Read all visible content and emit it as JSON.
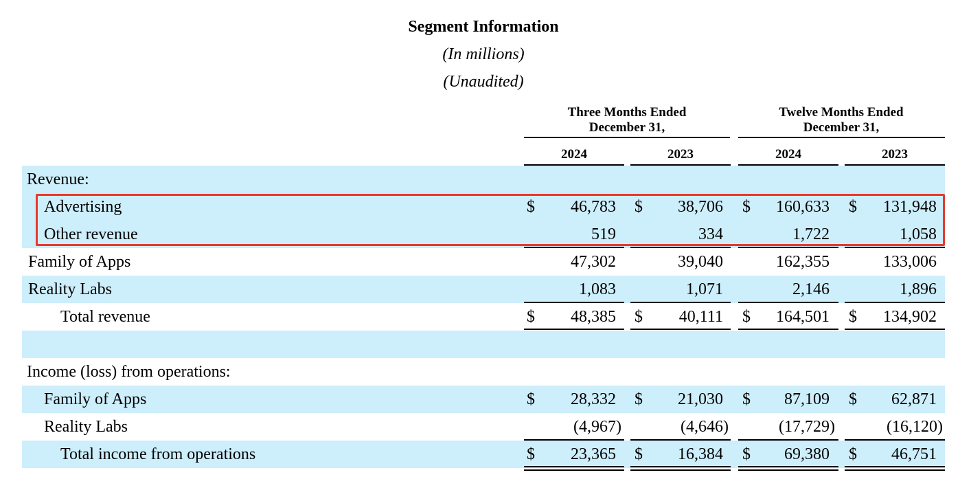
{
  "title": "Segment Information",
  "subtitle1": "(In millions)",
  "subtitle2": "(Unaudited)",
  "periods": [
    {
      "line1": "Three Months Ended",
      "line2": "December 31,"
    },
    {
      "line1": "Twelve Months Ended",
      "line2": "December 31,"
    }
  ],
  "years": [
    "2024",
    "2023",
    "2024",
    "2023"
  ],
  "rows": [
    {
      "label": "Revenue:",
      "values": [
        "",
        "",
        "",
        ""
      ]
    },
    {
      "label": "Advertising",
      "values": [
        "46,783",
        "38,706",
        "160,633",
        "131,948"
      ],
      "dollar": "$"
    },
    {
      "label": "Other revenue",
      "values": [
        "519",
        "334",
        "1,722",
        "1,058"
      ]
    },
    {
      "label": "Family of Apps",
      "values": [
        "47,302",
        "39,040",
        "162,355",
        "133,006"
      ]
    },
    {
      "label": "Reality Labs",
      "values": [
        "1,083",
        "1,071",
        "2,146",
        "1,896"
      ]
    },
    {
      "label": "Total revenue",
      "values": [
        "48,385",
        "40,111",
        "164,501",
        "134,902"
      ],
      "dollar": "$"
    },
    {
      "label": "",
      "values": [
        "",
        "",
        "",
        ""
      ]
    },
    {
      "label": "Income (loss) from operations:",
      "values": [
        "",
        "",
        "",
        ""
      ]
    },
    {
      "label": "Family of Apps",
      "values": [
        "28,332",
        "21,030",
        "87,109",
        "62,871"
      ],
      "dollar": "$"
    },
    {
      "label": "Reality Labs",
      "values": [
        "(4,967)",
        "(4,646)",
        "(17,729)",
        "(16,120)"
      ]
    },
    {
      "label": "Total income from operations",
      "values": [
        "23,365",
        "16,384",
        "69,380",
        "46,751"
      ],
      "dollar": "$"
    }
  ],
  "highlight_color": "#e8382c",
  "shade_color": "#cdeefb"
}
